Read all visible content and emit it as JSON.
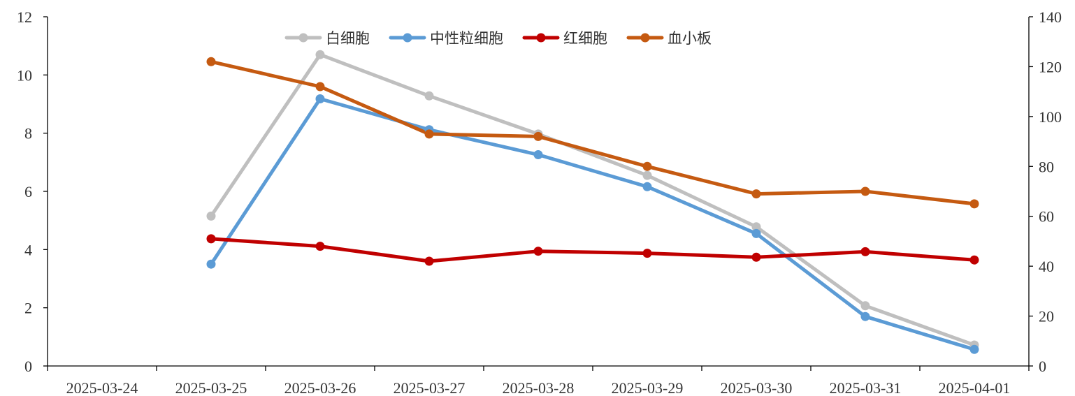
{
  "chart_data": {
    "type": "line",
    "categories": [
      "2025-03-24",
      "2025-03-25",
      "2025-03-26",
      "2025-03-27",
      "2025-03-28",
      "2025-03-29",
      "2025-03-30",
      "2025-03-31",
      "2025-04-01"
    ],
    "y_left": {
      "range": [
        0,
        12
      ],
      "ticks": [
        "0",
        "2",
        "4",
        "6",
        "8",
        "10",
        "12"
      ]
    },
    "y_right": {
      "range": [
        0,
        140
      ],
      "ticks": [
        "0",
        "20",
        "40",
        "60",
        "80",
        "100",
        "120",
        "140"
      ]
    },
    "grid": false,
    "legend_position": "top-center",
    "series": [
      {
        "name": "白细胞",
        "axis": "left",
        "color": "#BFBFBF",
        "values": [
          null,
          5.15,
          10.7,
          9.28,
          7.97,
          6.55,
          4.78,
          2.07,
          0.72
        ]
      },
      {
        "name": "中性粒细胞",
        "axis": "left",
        "color": "#5B9BD5",
        "values": [
          null,
          3.5,
          9.18,
          8.12,
          7.26,
          6.16,
          4.55,
          1.7,
          0.57
        ]
      },
      {
        "name": "红细胞",
        "axis": "right",
        "color": "#C00000",
        "values": [
          null,
          51,
          48,
          42,
          46,
          45.2,
          43.6,
          45.8,
          42.5
        ]
      },
      {
        "name": "血小板",
        "axis": "right",
        "color": "#C55A11",
        "values": [
          null,
          122,
          112,
          93,
          92,
          80,
          69,
          70,
          65
        ]
      }
    ]
  }
}
